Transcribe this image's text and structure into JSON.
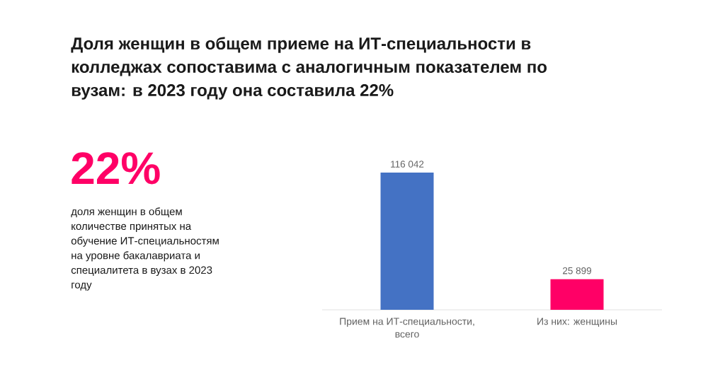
{
  "chart_data": {
    "type": "bar",
    "title": "Доля женщин в общем приеме на ИТ-специальности в колледжах сопоставима с аналогичным показателем по вузам: в 2023 году она составила 22%",
    "categories": [
      "Прием на ИТ-специальности, всего",
      "Из них: женщины"
    ],
    "values": [
      116042,
      25899
    ],
    "value_labels": [
      "116 042",
      "25 899"
    ],
    "colors": [
      "#4472c4",
      "#ff0066"
    ],
    "annotations": [
      "22%",
      "доля женщин в общем количестве принятых на обучение ИТ-специальностям на уровне бакалавриата и специалитета в вузах в 2023 году"
    ]
  }
}
